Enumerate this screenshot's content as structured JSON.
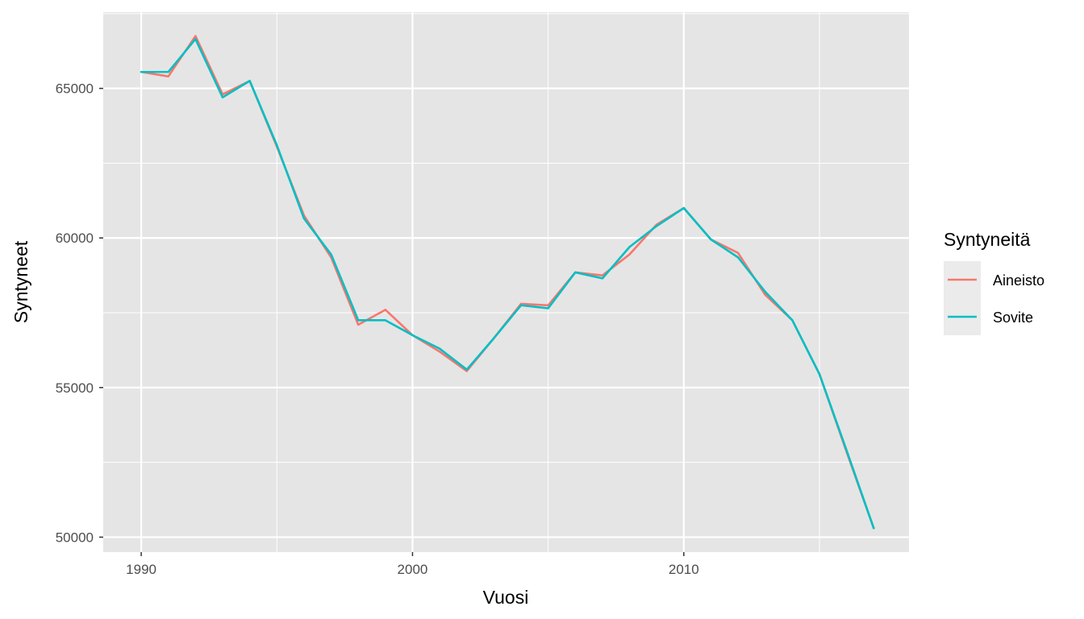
{
  "chart_data": {
    "type": "line",
    "xlabel": "Vuosi",
    "ylabel": "Syntyneet",
    "xlim": [
      1988.6,
      2018.3
    ],
    "ylim": [
      49500,
      67550
    ],
    "x_ticks": [
      1990,
      2000,
      2010
    ],
    "y_ticks": [
      50000,
      55000,
      60000,
      65000
    ],
    "grid": true,
    "legend": {
      "title": "Syntyneitä",
      "position": "right"
    },
    "colors": {
      "panel_background": "#e5e5e5",
      "grid": "#ffffff",
      "legend_key_background": "#ebebeb"
    },
    "x": [
      1990,
      1991,
      1992,
      1993,
      1994,
      1995,
      1996,
      1997,
      1998,
      1999,
      2000,
      2001,
      2002,
      2003,
      2004,
      2005,
      2006,
      2007,
      2008,
      2009,
      2010,
      2011,
      2012,
      2013,
      2014,
      2015,
      2016,
      2017
    ],
    "series": [
      {
        "name": "Aineisto",
        "color": "#f8766d",
        "values": [
          65550,
          65400,
          66750,
          64800,
          65250,
          63050,
          60750,
          59350,
          57100,
          57600,
          56750,
          56200,
          55550,
          56650,
          57800,
          57750,
          58850,
          58750,
          59450,
          60450,
          61000,
          59950,
          59500,
          58100,
          57250,
          55450,
          52850,
          50300
        ]
      },
      {
        "name": "Sovite",
        "color": "#00bfc4",
        "values": [
          65550,
          65550,
          66650,
          64700,
          65250,
          63100,
          60650,
          59450,
          57250,
          57250,
          56750,
          56300,
          55600,
          56650,
          57750,
          57650,
          58850,
          58650,
          59700,
          60400,
          61000,
          59950,
          59350,
          58200,
          57250,
          55450,
          52900,
          50300
        ]
      }
    ]
  }
}
